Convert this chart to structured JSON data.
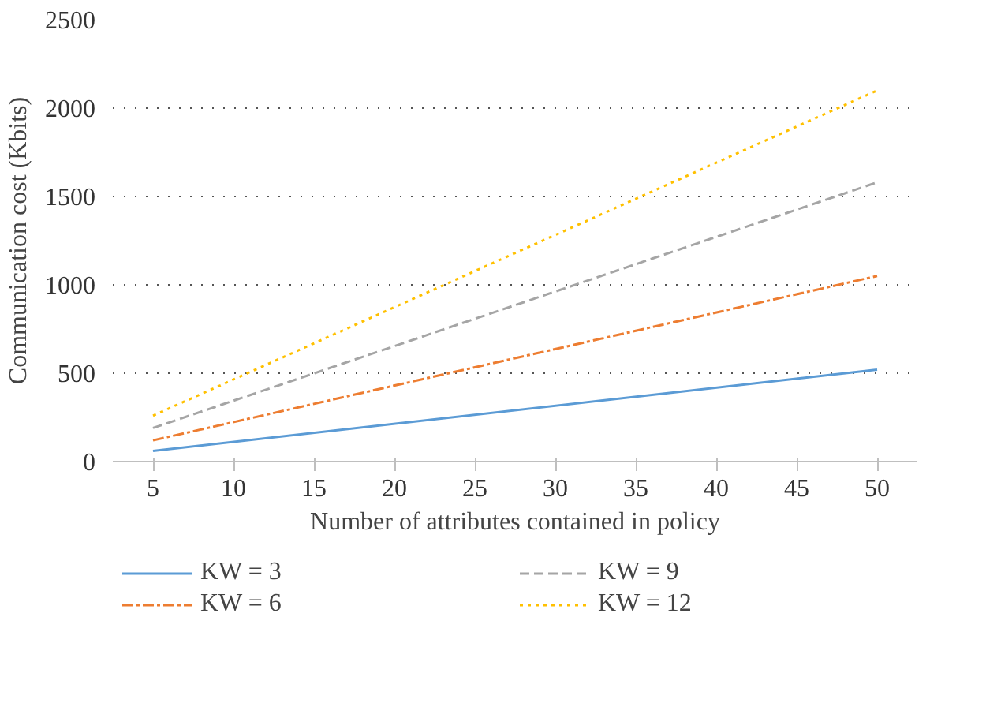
{
  "chart_data": {
    "type": "line",
    "xlabel": "Number of attributes contained in policy",
    "ylabel": "Communication cost (Kbits)",
    "x": [
      5,
      50
    ],
    "xlim": [
      2.5,
      52.5
    ],
    "xticks": [
      5,
      10,
      15,
      20,
      25,
      30,
      35,
      40,
      45,
      50
    ],
    "ylim": [
      0,
      2500
    ],
    "yticks": [
      0,
      500,
      1000,
      1500,
      2000,
      2500
    ],
    "grid": "y",
    "legend": "bottom",
    "series": [
      {
        "name": "KW = 3",
        "color": "#5b9bd5",
        "line_style": "solid",
        "values": [
          60,
          520
        ]
      },
      {
        "name": "KW = 6",
        "color": "#ed7d31",
        "line_style": "dashdot",
        "values": [
          120,
          1050
        ]
      },
      {
        "name": "KW = 9",
        "color": "#a5a5a5",
        "line_style": "dashed",
        "values": [
          190,
          1580
        ]
      },
      {
        "name": "KW = 12",
        "color": "#ffc000",
        "line_style": "dotted",
        "values": [
          260,
          2100
        ]
      }
    ]
  }
}
